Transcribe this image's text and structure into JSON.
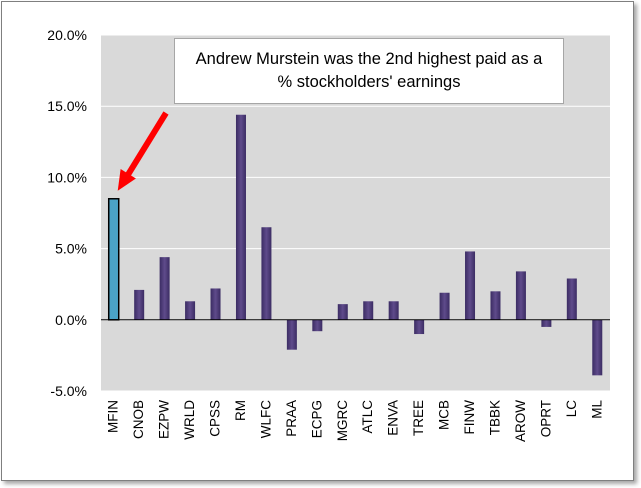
{
  "chart_data": {
    "type": "bar",
    "title": "",
    "xlabel": "",
    "ylabel": "",
    "ylim": [
      -0.05,
      0.2
    ],
    "yticks": [
      {
        "value": -0.05,
        "label": "-5.0%"
      },
      {
        "value": 0.0,
        "label": "0.0%"
      },
      {
        "value": 0.05,
        "label": "5.0%"
      },
      {
        "value": 0.1,
        "label": "10.0%"
      },
      {
        "value": 0.15,
        "label": "15.0%"
      },
      {
        "value": 0.2,
        "label": "20.0%"
      }
    ],
    "grid": true,
    "categories": [
      "MFIN",
      "CNOB",
      "EZPW",
      "WRLD",
      "CPSS",
      "RM",
      "WLFC",
      "PRAA",
      "ECPG",
      "MGRC",
      "ATLC",
      "ENVA",
      "TREE",
      "MCB",
      "FINW",
      "TBBK",
      "AROW",
      "OPRT",
      "LC",
      "ML"
    ],
    "values": [
      0.085,
      0.021,
      0.044,
      0.013,
      0.022,
      0.144,
      0.065,
      -0.021,
      -0.008,
      0.011,
      0.013,
      0.013,
      -0.01,
      0.019,
      0.048,
      0.02,
      0.034,
      -0.005,
      0.029,
      -0.039
    ],
    "highlight": "MFIN",
    "colors": {
      "bar": "#5f4b8b",
      "bar_dark": "#3b2c63",
      "highlight_fill": "#4ba3c7",
      "highlight_dark": "#1f6f8f",
      "plot_bg": "#d9d9d9",
      "arrow": "#ff0000"
    },
    "annotation": "Andrew Murstein was the 2nd highest paid as a % stockholders' earnings"
  }
}
